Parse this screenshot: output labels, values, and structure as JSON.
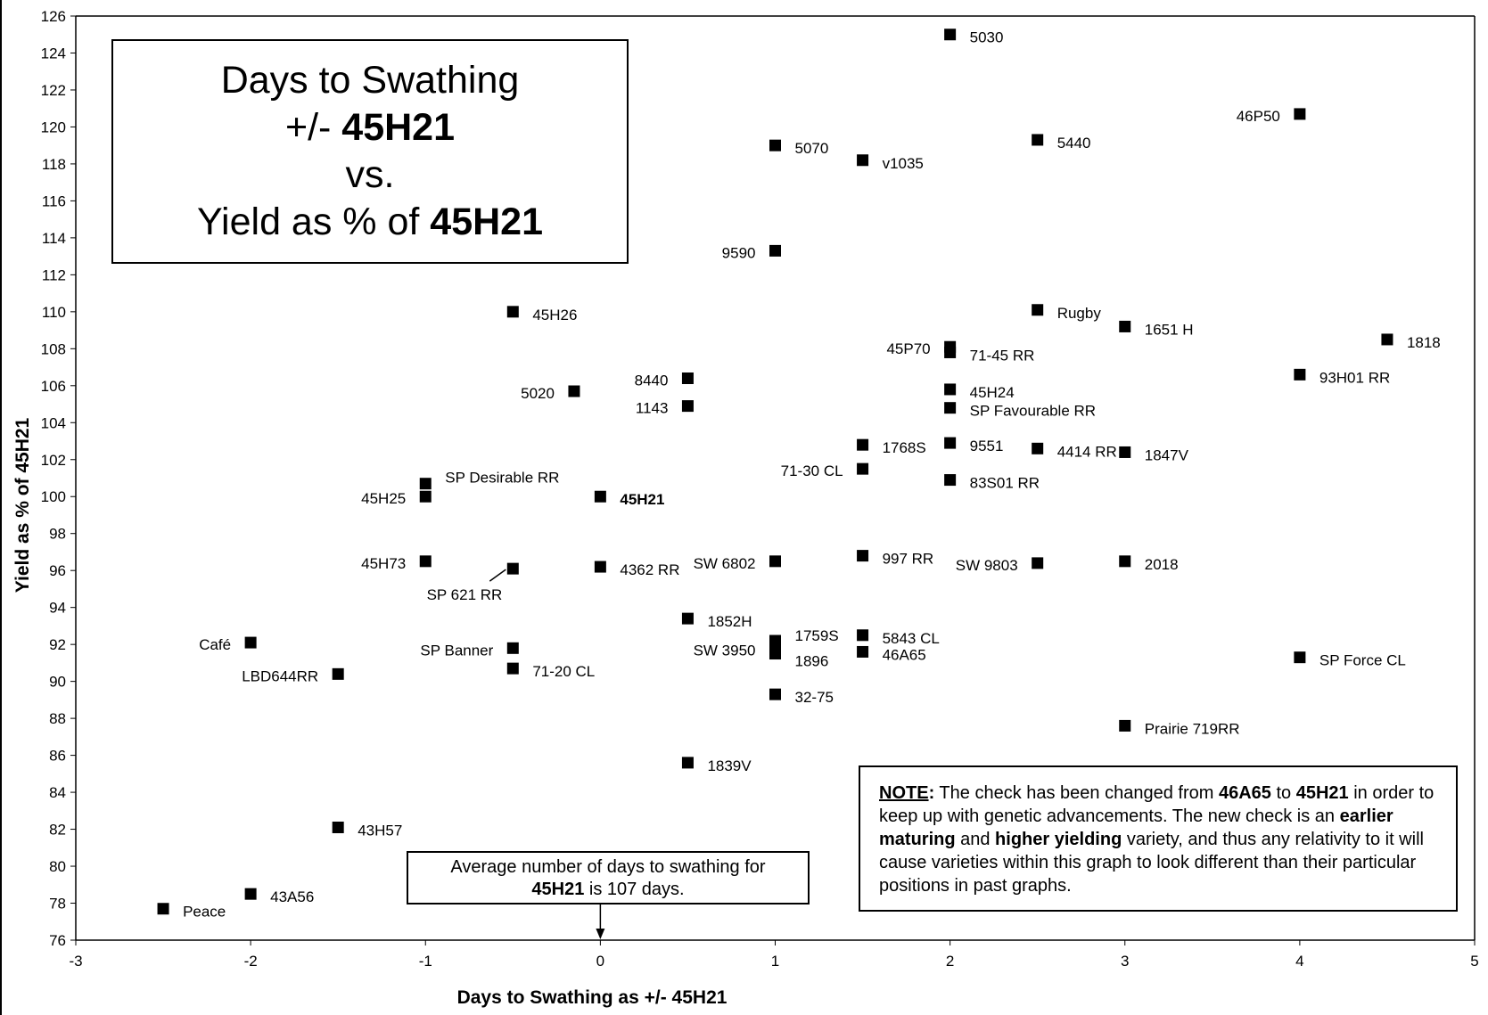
{
  "chart_data": {
    "type": "scatter",
    "xlabel": "Days to Swathing as +/- 45H21",
    "ylabel": "Yield as % of 45H21",
    "xlim": [
      -3,
      5
    ],
    "ylim": [
      76,
      126
    ],
    "x_ticks": [
      -3,
      -2,
      -1,
      0,
      1,
      2,
      3,
      4,
      5
    ],
    "y_ticks": [
      76,
      78,
      80,
      82,
      84,
      86,
      88,
      90,
      92,
      94,
      96,
      98,
      100,
      102,
      104,
      106,
      108,
      110,
      112,
      114,
      116,
      118,
      120,
      122,
      124,
      126
    ],
    "grid": false,
    "marker_color": "#000000",
    "points": [
      {
        "label": "5030",
        "x": 2,
        "y": 125
      },
      {
        "label": "46P50",
        "x": 4,
        "y": 120.7
      },
      {
        "label": "5070",
        "x": 1,
        "y": 119
      },
      {
        "label": "5440",
        "x": 2.5,
        "y": 119.3
      },
      {
        "label": "v1035",
        "x": 1.5,
        "y": 118.2
      },
      {
        "label": "9590",
        "x": 1,
        "y": 113.3
      },
      {
        "label": "45H26",
        "x": -0.5,
        "y": 110
      },
      {
        "label": "Rugby",
        "x": 2.5,
        "y": 110.1
      },
      {
        "label": "1651 H",
        "x": 3,
        "y": 109.2
      },
      {
        "label": "1818",
        "x": 4.5,
        "y": 108.5
      },
      {
        "label": "45P70",
        "x": 2,
        "y": 108.1
      },
      {
        "label": "71-45 RR",
        "x": 2,
        "y": 107.8
      },
      {
        "label": "93H01 RR",
        "x": 4,
        "y": 106.6
      },
      {
        "label": "8440",
        "x": 0.5,
        "y": 106.4
      },
      {
        "label": "5020",
        "x": -0.15,
        "y": 105.7
      },
      {
        "label": "45H24",
        "x": 2,
        "y": 105.8
      },
      {
        "label": "1143",
        "x": 0.5,
        "y": 104.9
      },
      {
        "label": "SP Favourable RR",
        "x": 2,
        "y": 104.8
      },
      {
        "label": "1768S",
        "x": 1.5,
        "y": 102.8
      },
      {
        "label": "9551",
        "x": 2,
        "y": 102.9
      },
      {
        "label": "4414 RR",
        "x": 2.5,
        "y": 102.6
      },
      {
        "label": "1847V",
        "x": 3,
        "y": 102.4
      },
      {
        "label": "71-30 CL",
        "x": 1.5,
        "y": 101.5
      },
      {
        "label": "83S01 RR",
        "x": 2,
        "y": 100.9
      },
      {
        "label": "SP Desirable RR",
        "x": -1,
        "y": 100.7
      },
      {
        "label": "45H25",
        "x": -1,
        "y": 100
      },
      {
        "label": "45H21",
        "x": 0,
        "y": 100,
        "bold": true
      },
      {
        "label": "997 RR",
        "x": 1.5,
        "y": 96.8
      },
      {
        "label": "45H73",
        "x": -1,
        "y": 96.5
      },
      {
        "label": "SW 6802",
        "x": 1,
        "y": 96.5
      },
      {
        "label": "SW 9803",
        "x": 2.5,
        "y": 96.4
      },
      {
        "label": "2018",
        "x": 3,
        "y": 96.5
      },
      {
        "label": "4362 RR",
        "x": 0,
        "y": 96.2
      },
      {
        "label": "SP 621 RR",
        "x": -0.5,
        "y": 96.1
      },
      {
        "label": "1852H",
        "x": 0.5,
        "y": 93.4
      },
      {
        "label": "5843 CL",
        "x": 1.5,
        "y": 92.5
      },
      {
        "label": "1759S",
        "x": 1,
        "y": 92.2
      },
      {
        "label": "SW 3950",
        "x": 1,
        "y": 91.8
      },
      {
        "label": "1896",
        "x": 1,
        "y": 91.5
      },
      {
        "label": "46A65",
        "x": 1.5,
        "y": 91.6
      },
      {
        "label": "Café",
        "x": -2,
        "y": 92.1
      },
      {
        "label": "SP Banner",
        "x": -0.5,
        "y": 91.8
      },
      {
        "label": "SP Force CL",
        "x": 4,
        "y": 91.3
      },
      {
        "label": "71-20 CL",
        "x": -0.5,
        "y": 90.7
      },
      {
        "label": "LBD644RR",
        "x": -1.5,
        "y": 90.4
      },
      {
        "label": "32-75",
        "x": 1,
        "y": 89.3
      },
      {
        "label": "Prairie 719RR",
        "x": 3,
        "y": 87.6
      },
      {
        "label": "1839V",
        "x": 0.5,
        "y": 85.6
      },
      {
        "label": "43H57",
        "x": -1.5,
        "y": 82.1
      },
      {
        "label": "43A56",
        "x": -2,
        "y": 78.5
      },
      {
        "label": "Peace",
        "x": -2.5,
        "y": 77.7
      }
    ]
  },
  "title_box": {
    "line1": "Days to Swathing",
    "line2_prefix": "+/- ",
    "line2_bold": "45H21",
    "line3": "vs.",
    "line4_prefix": "Yield as % of ",
    "line4_bold": "45H21"
  },
  "note": {
    "heading": "NOTE",
    "heading_colon": ":",
    "t1": " The check has been changed from ",
    "b1": "46A65",
    "t2": " to ",
    "b2": "45H21",
    "t3": " in order to keep up with genetic advancements.  The new check is an ",
    "b3": "earlier maturing",
    "t4": " and ",
    "b4": "higher yielding",
    "t5": "  variety, and thus any relativity to it will cause varieties within this graph to look different than their particular positions in past graphs."
  },
  "avg_box": {
    "line1": "Average number of days to swathing for",
    "bold": "45H21",
    "rest": " is 107 days."
  }
}
